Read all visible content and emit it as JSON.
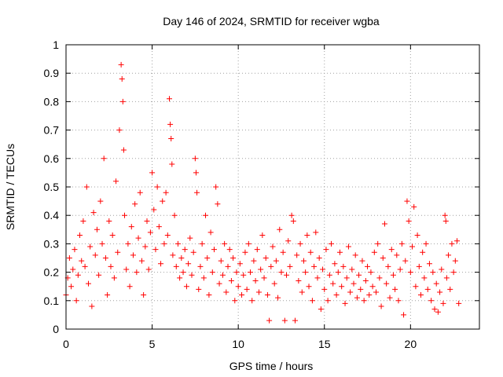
{
  "chart_data": {
    "type": "scatter",
    "title": "Day 146 of 2024, SRMTID for receiver wgba",
    "xlabel": "GPS time / hours",
    "ylabel": "SRMTID / TECUs",
    "xlim": [
      0,
      24
    ],
    "ylim": [
      0,
      1
    ],
    "grid": true,
    "marker": "+",
    "marker_color": "#ff0000",
    "x_ticks": [
      0,
      5,
      10,
      15,
      20
    ],
    "x_tick_labels": [
      "0",
      "5",
      "10",
      "15",
      "20"
    ],
    "y_ticks": [
      0,
      0.1,
      0.2,
      0.3,
      0.4,
      0.5,
      0.6,
      0.7,
      0.8,
      0.9,
      1
    ],
    "y_tick_labels": [
      "0",
      "0.1",
      "0.2",
      "0.3",
      "0.4",
      "0.5",
      "0.6",
      "0.7",
      "0.8",
      "0.9",
      "1"
    ],
    "series": [
      {
        "name": "SRMTID",
        "points": [
          [
            0.0,
            0.12
          ],
          [
            0.1,
            0.18
          ],
          [
            0.2,
            0.25
          ],
          [
            0.3,
            0.15
          ],
          [
            0.4,
            0.21
          ],
          [
            0.5,
            0.28
          ],
          [
            0.6,
            0.1
          ],
          [
            0.7,
            0.19
          ],
          [
            0.8,
            0.33
          ],
          [
            0.9,
            0.24
          ],
          [
            1.0,
            0.38
          ],
          [
            1.1,
            0.22
          ],
          [
            1.2,
            0.5
          ],
          [
            1.3,
            0.16
          ],
          [
            1.4,
            0.29
          ],
          [
            1.5,
            0.08
          ],
          [
            1.6,
            0.41
          ],
          [
            1.7,
            0.26
          ],
          [
            1.8,
            0.35
          ],
          [
            1.9,
            0.19
          ],
          [
            2.0,
            0.45
          ],
          [
            2.1,
            0.3
          ],
          [
            2.2,
            0.6
          ],
          [
            2.3,
            0.25
          ],
          [
            2.4,
            0.12
          ],
          [
            2.5,
            0.38
          ],
          [
            2.6,
            0.22
          ],
          [
            2.7,
            0.33
          ],
          [
            2.8,
            0.18
          ],
          [
            2.9,
            0.52
          ],
          [
            3.0,
            0.27
          ],
          [
            3.1,
            0.7
          ],
          [
            3.2,
            0.93
          ],
          [
            3.25,
            0.88
          ],
          [
            3.3,
            0.8
          ],
          [
            3.35,
            0.63
          ],
          [
            3.4,
            0.4
          ],
          [
            3.5,
            0.21
          ],
          [
            3.6,
            0.3
          ],
          [
            3.7,
            0.15
          ],
          [
            3.8,
            0.36
          ],
          [
            3.9,
            0.26
          ],
          [
            4.0,
            0.44
          ],
          [
            4.1,
            0.2
          ],
          [
            4.2,
            0.32
          ],
          [
            4.3,
            0.48
          ],
          [
            4.4,
            0.24
          ],
          [
            4.5,
            0.12
          ],
          [
            4.6,
            0.29
          ],
          [
            4.7,
            0.38
          ],
          [
            4.8,
            0.21
          ],
          [
            4.9,
            0.34
          ],
          [
            5.0,
            0.55
          ],
          [
            5.1,
            0.42
          ],
          [
            5.2,
            0.28
          ],
          [
            5.3,
            0.5
          ],
          [
            5.4,
            0.36
          ],
          [
            5.5,
            0.23
          ],
          [
            5.6,
            0.45
          ],
          [
            5.7,
            0.3
          ],
          [
            5.8,
            0.48
          ],
          [
            5.9,
            0.33
          ],
          [
            6.0,
            0.81
          ],
          [
            6.05,
            0.72
          ],
          [
            6.1,
            0.67
          ],
          [
            6.15,
            0.58
          ],
          [
            6.2,
            0.26
          ],
          [
            6.3,
            0.4
          ],
          [
            6.4,
            0.22
          ],
          [
            6.5,
            0.3
          ],
          [
            6.6,
            0.18
          ],
          [
            6.7,
            0.25
          ],
          [
            6.8,
            0.2
          ],
          [
            6.9,
            0.28
          ],
          [
            7.0,
            0.15
          ],
          [
            7.1,
            0.23
          ],
          [
            7.2,
            0.32
          ],
          [
            7.3,
            0.19
          ],
          [
            7.4,
            0.27
          ],
          [
            7.5,
            0.6
          ],
          [
            7.55,
            0.55
          ],
          [
            7.6,
            0.48
          ],
          [
            7.7,
            0.14
          ],
          [
            7.8,
            0.22
          ],
          [
            7.9,
            0.3
          ],
          [
            8.0,
            0.18
          ],
          [
            8.1,
            0.4
          ],
          [
            8.2,
            0.25
          ],
          [
            8.3,
            0.12
          ],
          [
            8.4,
            0.34
          ],
          [
            8.5,
            0.2
          ],
          [
            8.6,
            0.28
          ],
          [
            8.7,
            0.5
          ],
          [
            8.8,
            0.44
          ],
          [
            8.9,
            0.16
          ],
          [
            9.0,
            0.24
          ],
          [
            9.1,
            0.19
          ],
          [
            9.2,
            0.3
          ],
          [
            9.3,
            0.13
          ],
          [
            9.4,
            0.22
          ],
          [
            9.5,
            0.28
          ],
          [
            9.6,
            0.17
          ],
          [
            9.7,
            0.25
          ],
          [
            9.8,
            0.1
          ],
          [
            9.9,
            0.2
          ],
          [
            10.0,
            0.15
          ],
          [
            10.1,
            0.23
          ],
          [
            10.2,
            0.12
          ],
          [
            10.3,
            0.19
          ],
          [
            10.4,
            0.27
          ],
          [
            10.5,
            0.14
          ],
          [
            10.6,
            0.3
          ],
          [
            10.7,
            0.2
          ],
          [
            10.8,
            0.1
          ],
          [
            10.9,
            0.24
          ],
          [
            11.0,
            0.17
          ],
          [
            11.1,
            0.28
          ],
          [
            11.2,
            0.13
          ],
          [
            11.3,
            0.21
          ],
          [
            11.4,
            0.33
          ],
          [
            11.5,
            0.18
          ],
          [
            11.6,
            0.25
          ],
          [
            11.7,
            0.12
          ],
          [
            11.8,
            0.03
          ],
          [
            11.9,
            0.22
          ],
          [
            12.0,
            0.29
          ],
          [
            12.1,
            0.16
          ],
          [
            12.2,
            0.24
          ],
          [
            12.3,
            0.11
          ],
          [
            12.4,
            0.35
          ],
          [
            12.5,
            0.2
          ],
          [
            12.6,
            0.27
          ],
          [
            12.7,
            0.03
          ],
          [
            12.8,
            0.19
          ],
          [
            12.9,
            0.31
          ],
          [
            13.0,
            0.22
          ],
          [
            13.1,
            0.4
          ],
          [
            13.2,
            0.38
          ],
          [
            13.3,
            0.03
          ],
          [
            13.4,
            0.26
          ],
          [
            13.5,
            0.17
          ],
          [
            13.6,
            0.3
          ],
          [
            13.7,
            0.13
          ],
          [
            13.8,
            0.24
          ],
          [
            13.9,
            0.2
          ],
          [
            14.0,
            0.33
          ],
          [
            14.1,
            0.15
          ],
          [
            14.2,
            0.27
          ],
          [
            14.3,
            0.1
          ],
          [
            14.4,
            0.22
          ],
          [
            14.5,
            0.34
          ],
          [
            14.6,
            0.18
          ],
          [
            14.7,
            0.25
          ],
          [
            14.8,
            0.07
          ],
          [
            14.9,
            0.21
          ],
          [
            15.0,
            0.14
          ],
          [
            15.1,
            0.28
          ],
          [
            15.2,
            0.1
          ],
          [
            15.3,
            0.19
          ],
          [
            15.4,
            0.3
          ],
          [
            15.5,
            0.16
          ],
          [
            15.6,
            0.23
          ],
          [
            15.7,
            0.12
          ],
          [
            15.8,
            0.2
          ],
          [
            15.9,
            0.27
          ],
          [
            16.0,
            0.15
          ],
          [
            16.1,
            0.22
          ],
          [
            16.2,
            0.09
          ],
          [
            16.3,
            0.18
          ],
          [
            16.4,
            0.29
          ],
          [
            16.5,
            0.13
          ],
          [
            16.6,
            0.21
          ],
          [
            16.7,
            0.16
          ],
          [
            16.8,
            0.26
          ],
          [
            16.9,
            0.11
          ],
          [
            17.0,
            0.19
          ],
          [
            17.1,
            0.14
          ],
          [
            17.2,
            0.24
          ],
          [
            17.3,
            0.1
          ],
          [
            17.4,
            0.17
          ],
          [
            17.5,
            0.22
          ],
          [
            17.6,
            0.12
          ],
          [
            17.7,
            0.2
          ],
          [
            17.8,
            0.15
          ],
          [
            17.9,
            0.27
          ],
          [
            18.0,
            0.13
          ],
          [
            18.1,
            0.3
          ],
          [
            18.2,
            0.18
          ],
          [
            18.3,
            0.08
          ],
          [
            18.4,
            0.25
          ],
          [
            18.5,
            0.37
          ],
          [
            18.6,
            0.16
          ],
          [
            18.7,
            0.22
          ],
          [
            18.8,
            0.11
          ],
          [
            18.9,
            0.28
          ],
          [
            19.0,
            0.19
          ],
          [
            19.1,
            0.14
          ],
          [
            19.2,
            0.26
          ],
          [
            19.3,
            0.1
          ],
          [
            19.4,
            0.21
          ],
          [
            19.5,
            0.3
          ],
          [
            19.6,
            0.05
          ],
          [
            19.7,
            0.24
          ],
          [
            19.8,
            0.45
          ],
          [
            19.9,
            0.38
          ],
          [
            20.0,
            0.2
          ],
          [
            20.1,
            0.29
          ],
          [
            20.2,
            0.43
          ],
          [
            20.3,
            0.15
          ],
          [
            20.4,
            0.33
          ],
          [
            20.5,
            0.22
          ],
          [
            20.6,
            0.12
          ],
          [
            20.7,
            0.27
          ],
          [
            20.8,
            0.18
          ],
          [
            20.9,
            0.3
          ],
          [
            21.0,
            0.14
          ],
          [
            21.1,
            0.23
          ],
          [
            21.2,
            0.1
          ],
          [
            21.3,
            0.2
          ],
          [
            21.4,
            0.07
          ],
          [
            21.5,
            0.16
          ],
          [
            21.6,
            0.06
          ],
          [
            21.7,
            0.13
          ],
          [
            21.8,
            0.21
          ],
          [
            21.9,
            0.09
          ],
          [
            22.0,
            0.4
          ],
          [
            22.05,
            0.38
          ],
          [
            22.1,
            0.18
          ],
          [
            22.2,
            0.26
          ],
          [
            22.3,
            0.14
          ],
          [
            22.4,
            0.3
          ],
          [
            22.5,
            0.2
          ],
          [
            22.6,
            0.24
          ],
          [
            22.7,
            0.31
          ],
          [
            22.8,
            0.09
          ]
        ]
      }
    ]
  }
}
